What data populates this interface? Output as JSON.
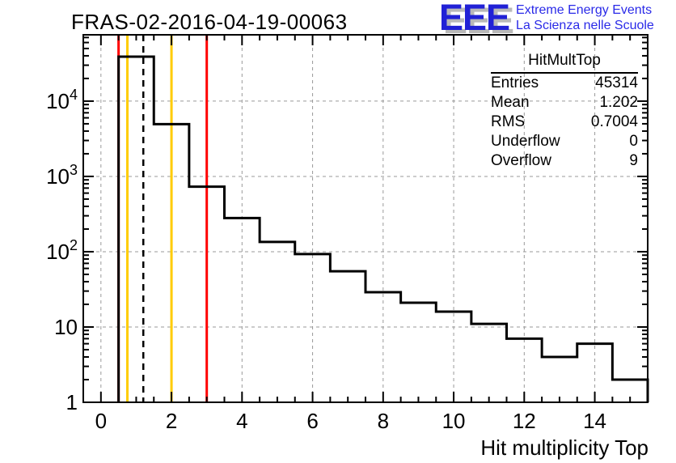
{
  "header": {
    "title": "FRAS-02-2016-04-19-00063"
  },
  "logo": {
    "acronym": "EEE",
    "line1": "Extreme Energy Events",
    "line2": "La Scienza nelle Scuole",
    "text_color": "#2a2ae8",
    "acronym_color": "#2121d6",
    "shadow_color": "#b9b9b9"
  },
  "stats": {
    "title": "HitMultTop",
    "rows": [
      {
        "label": "Entries",
        "value": "45314"
      },
      {
        "label": "Mean",
        "value": "1.202"
      },
      {
        "label": "RMS",
        "value": "0.7004"
      },
      {
        "label": "Underflow",
        "value": "0"
      },
      {
        "label": "Overflow",
        "value": "9"
      }
    ]
  },
  "chart_data": {
    "type": "bar",
    "subtype": "step-histogram",
    "title": "FRAS-02-2016-04-19-00063",
    "xlabel": "Hit multiplicity Top",
    "ylabel": "",
    "y_scale": "log",
    "x_range": [
      -0.5,
      15.5
    ],
    "y_range": [
      1,
      76000
    ],
    "grid": true,
    "bin_centers": [
      0,
      1,
      2,
      3,
      4,
      5,
      6,
      7,
      8,
      9,
      10,
      11,
      12,
      13,
      14,
      15
    ],
    "counts": [
      0,
      39000,
      4950,
      730,
      280,
      135,
      93,
      55,
      29,
      21,
      16,
      11,
      7,
      4,
      6,
      2
    ],
    "x_major_ticks": [
      0,
      2,
      4,
      6,
      8,
      10,
      12,
      14
    ],
    "x_minor_step": 0.5,
    "y_tick_exponents": [
      0,
      1,
      2,
      3,
      4
    ],
    "marker_lines": [
      {
        "name": "red-line-low",
        "x": 0.5,
        "color": "#ff0000",
        "style": "solid"
      },
      {
        "name": "gold-line-low",
        "x": 0.75,
        "color": "#ffcc00",
        "style": "solid"
      },
      {
        "name": "mean-line",
        "x": 1.202,
        "color": "#000000",
        "style": "dashed"
      },
      {
        "name": "gold-line-high",
        "x": 2.0,
        "color": "#ffcc00",
        "style": "solid"
      },
      {
        "name": "red-line-high",
        "x": 3.0,
        "color": "#ff0000",
        "style": "solid"
      }
    ],
    "line_color": "#000000",
    "grid_color": "#9a9a9a",
    "frame_color": "#000000"
  }
}
